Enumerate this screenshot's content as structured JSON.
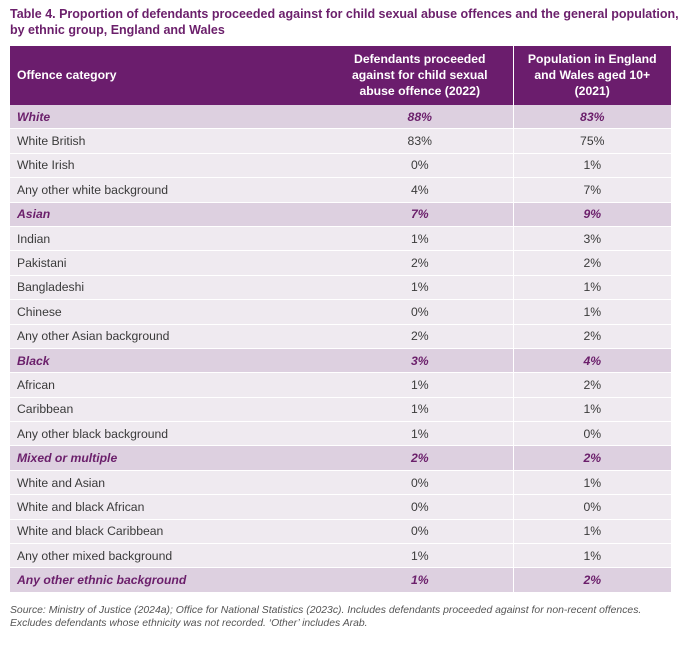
{
  "title": "Table 4. Proportion of defendants proceeded against for child sexual abuse offences and the general population, by ethnic group, England and Wales",
  "table": {
    "headers": {
      "category": "Offence category",
      "defendants": "Defendants proceeded against for child sexual abuse offence (2022)",
      "population": "Population in England and Wales aged 10+ (2021)"
    },
    "rows": [
      {
        "label": "White",
        "defendants": "88%",
        "population": "83%",
        "group": true
      },
      {
        "label": "White British",
        "defendants": "83%",
        "population": "75%",
        "group": false
      },
      {
        "label": "White Irish",
        "defendants": "0%",
        "population": "1%",
        "group": false
      },
      {
        "label": "Any other white background",
        "defendants": "4%",
        "population": "7%",
        "group": false
      },
      {
        "label": "Asian",
        "defendants": "7%",
        "population": "9%",
        "group": true
      },
      {
        "label": "Indian",
        "defendants": "1%",
        "population": "3%",
        "group": false
      },
      {
        "label": "Pakistani",
        "defendants": "2%",
        "population": "2%",
        "group": false
      },
      {
        "label": "Bangladeshi",
        "defendants": "1%",
        "population": "1%",
        "group": false
      },
      {
        "label": "Chinese",
        "defendants": "0%",
        "population": "1%",
        "group": false
      },
      {
        "label": "Any other Asian background",
        "defendants": "2%",
        "population": "2%",
        "group": false
      },
      {
        "label": "Black",
        "defendants": "3%",
        "population": "4%",
        "group": true
      },
      {
        "label": "African",
        "defendants": "1%",
        "population": "2%",
        "group": false
      },
      {
        "label": "Caribbean",
        "defendants": "1%",
        "population": "1%",
        "group": false
      },
      {
        "label": "Any other black background",
        "defendants": "1%",
        "population": "0%",
        "group": false
      },
      {
        "label": "Mixed or multiple",
        "defendants": "2%",
        "population": "2%",
        "group": true
      },
      {
        "label": "White and Asian",
        "defendants": "0%",
        "population": "1%",
        "group": false
      },
      {
        "label": "White and black African",
        "defendants": "0%",
        "population": "0%",
        "group": false
      },
      {
        "label": "White and black Caribbean",
        "defendants": "0%",
        "population": "1%",
        "group": false
      },
      {
        "label": "Any other mixed background",
        "defendants": "1%",
        "population": "1%",
        "group": false
      },
      {
        "label": "Any other ethnic background",
        "defendants": "1%",
        "population": "2%",
        "group": true
      }
    ]
  },
  "source": "Source: Ministry of Justice (2024a); Office for National Statistics (2023c). Includes defendants proceeded against for non-recent offences. Excludes defendants whose ethnicity was not recorded. ‘Other’ includes Arab.",
  "colors": {
    "header_bg": "#6b1d6d",
    "group_bg": "#ddd0e0",
    "row_bg": "#efeaf0",
    "title": "#6b1f6b"
  }
}
